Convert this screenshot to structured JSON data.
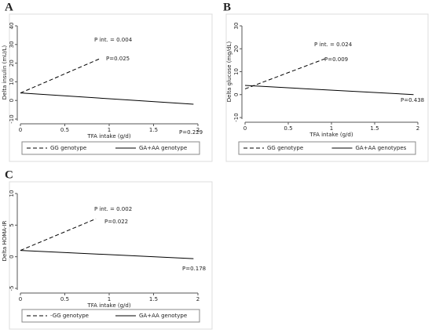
{
  "chart_data": [
    {
      "type": "line",
      "panel": "A",
      "x_label": "TFA intake (g/d)",
      "y_label": "Delta insulin (mU/L)",
      "xlim": [
        0,
        2
      ],
      "xticks": [
        0,
        0.5,
        1,
        1.5,
        2
      ],
      "ylim": [
        -10,
        40
      ],
      "yticks": [
        -10,
        0,
        10,
        20,
        30,
        40
      ],
      "series": [
        {
          "name": "GG genotype",
          "color": "#000000",
          "dash": true,
          "x": [
            0,
            0.9
          ],
          "values": [
            4,
            22.5
          ]
        },
        {
          "name": "GA+AA genotype",
          "color": "#000000",
          "dash": false,
          "x": [
            0,
            1.95
          ],
          "values": [
            4,
            -2
          ]
        }
      ],
      "annotations": [
        "P int. = 0.004",
        "P=0.025",
        "P=0.229"
      ]
    },
    {
      "type": "line",
      "panel": "B",
      "x_label": "TFA intake (g/d)",
      "y_label": "Delta glucose (mg/dL)",
      "xlim": [
        0,
        2
      ],
      "xticks": [
        0,
        0.5,
        1,
        1.5,
        2
      ],
      "ylim": [
        -10,
        30
      ],
      "yticks": [
        -10,
        0,
        10,
        20,
        30
      ],
      "series": [
        {
          "name": "GG genotype",
          "color": "#000000",
          "dash": true,
          "x": [
            0,
            0.95
          ],
          "values": [
            2.5,
            16
          ]
        },
        {
          "name": "GA+AA genotypes",
          "color": "#000000",
          "dash": false,
          "x": [
            0,
            1.95
          ],
          "values": [
            4,
            0
          ]
        }
      ],
      "annotations": [
        "P int. = 0.024",
        "P=0.009",
        "P=0.438"
      ]
    },
    {
      "type": "line",
      "panel": "C",
      "x_label": "TFA intake (g/d)",
      "y_label": "Delta HOMA-IR",
      "xlim": [
        0,
        2
      ],
      "xticks": [
        0,
        0.5,
        1,
        1.5,
        2
      ],
      "ylim": [
        -5,
        10
      ],
      "yticks": [
        -5,
        0,
        5,
        10
      ],
      "series": [
        {
          "name": "-GG genotype",
          "color": "#000000",
          "dash": true,
          "x": [
            0,
            0.85
          ],
          "values": [
            1,
            6
          ]
        },
        {
          "name": "GA+AA genotype",
          "color": "#000000",
          "dash": false,
          "x": [
            0,
            1.95
          ],
          "values": [
            1,
            -0.3
          ]
        }
      ],
      "annotations": [
        "P int. = 0.002",
        "P=0.022",
        "P=0.178"
      ]
    }
  ]
}
